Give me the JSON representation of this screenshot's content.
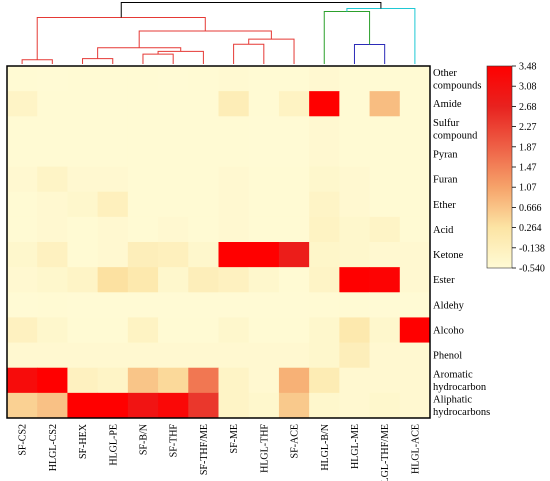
{
  "chart_data": {
    "type": "heatmap",
    "title": "",
    "xlabel": "",
    "ylabel": "",
    "columns": [
      "SF-CS2",
      "HLGL-CS2",
      "SF-HEX",
      "HLGL-PE",
      "SF-B/N",
      "SF-THF",
      "SF-THF/ME",
      "SF-ME",
      "HLGL-THF",
      "SF-ACE",
      "HLGL-B/N",
      "HLGL-ME",
      "HLGL-THF/ME",
      "HLGL-ACE"
    ],
    "rows": [
      [
        "Other",
        "compounds"
      ],
      [
        "Amide"
      ],
      [
        "Sulfur",
        "compound"
      ],
      [
        "Pyran"
      ],
      [
        "Furan"
      ],
      [
        "Ether"
      ],
      [
        "Acid"
      ],
      [
        "Ketone"
      ],
      [
        "Ester"
      ],
      [
        "Aldehy"
      ],
      [
        "Alcoho"
      ],
      [
        "Phenol"
      ],
      [
        "Aromatic",
        "hydrocarbon"
      ],
      [
        "Aliphatic",
        "hydrocarbons"
      ]
    ],
    "values": [
      [
        -0.5,
        -0.52,
        -0.5,
        -0.5,
        -0.5,
        -0.52,
        -0.5,
        -0.48,
        -0.5,
        -0.5,
        -0.45,
        -0.5,
        -0.5,
        -0.5
      ],
      [
        -0.3,
        -0.5,
        -0.5,
        -0.5,
        -0.5,
        -0.5,
        -0.5,
        -0.05,
        -0.5,
        -0.25,
        3.48,
        -0.5,
        0.75,
        -0.5
      ],
      [
        -0.5,
        -0.5,
        -0.5,
        -0.5,
        -0.5,
        -0.5,
        -0.5,
        -0.5,
        -0.52,
        -0.52,
        -0.45,
        -0.5,
        -0.5,
        -0.5
      ],
      [
        -0.5,
        -0.5,
        -0.5,
        -0.5,
        -0.5,
        -0.5,
        -0.5,
        -0.5,
        -0.52,
        -0.52,
        -0.45,
        -0.5,
        -0.5,
        -0.5
      ],
      [
        -0.45,
        -0.3,
        -0.45,
        -0.45,
        -0.5,
        -0.5,
        -0.5,
        -0.45,
        -0.5,
        -0.5,
        -0.4,
        -0.45,
        -0.5,
        -0.5
      ],
      [
        -0.5,
        -0.45,
        -0.4,
        -0.15,
        -0.5,
        -0.5,
        -0.5,
        -0.45,
        -0.5,
        -0.5,
        -0.3,
        -0.45,
        -0.5,
        -0.5
      ],
      [
        -0.5,
        -0.45,
        -0.5,
        -0.45,
        -0.5,
        -0.45,
        -0.5,
        -0.45,
        -0.5,
        -0.5,
        -0.25,
        -0.4,
        -0.3,
        -0.5
      ],
      [
        -0.4,
        -0.2,
        -0.5,
        -0.45,
        -0.1,
        -0.15,
        -0.4,
        3.48,
        3.48,
        2.8,
        -0.35,
        -0.4,
        -0.45,
        -0.45
      ],
      [
        -0.45,
        -0.4,
        -0.3,
        0.3,
        0.1,
        -0.4,
        -0.1,
        -0.2,
        -0.4,
        -0.5,
        -0.3,
        3.48,
        3.4,
        -0.45
      ],
      [
        -0.52,
        -0.5,
        -0.52,
        -0.52,
        -0.52,
        -0.52,
        -0.52,
        -0.52,
        -0.52,
        -0.52,
        -0.5,
        -0.5,
        -0.52,
        -0.52
      ],
      [
        -0.2,
        -0.4,
        -0.5,
        -0.5,
        -0.25,
        -0.5,
        -0.5,
        -0.4,
        -0.5,
        -0.5,
        -0.4,
        0.1,
        -0.4,
        3.48
      ],
      [
        -0.45,
        -0.45,
        -0.45,
        -0.45,
        -0.45,
        -0.45,
        -0.45,
        -0.45,
        -0.45,
        -0.45,
        -0.4,
        -0.1,
        -0.45,
        -0.45
      ],
      [
        3.2,
        3.48,
        -0.2,
        -0.3,
        0.65,
        0.4,
        1.6,
        -0.3,
        -0.45,
        0.9,
        0.0,
        -0.45,
        -0.45,
        -0.45
      ],
      [
        0.5,
        0.7,
        3.48,
        3.48,
        3.0,
        3.3,
        2.4,
        -0.3,
        -0.4,
        0.6,
        -0.4,
        -0.45,
        -0.4,
        -0.45
      ]
    ],
    "colorbar": {
      "ticks": [
        "3.48",
        "3.08",
        "2.68",
        "2.27",
        "1.87",
        "1.47",
        "1.07",
        "0.666",
        "0.264",
        "-0.138",
        "-0.540"
      ],
      "min": -0.54,
      "max": 3.48,
      "colors": [
        "#fffbd5",
        "#fce4a4",
        "#f6a36a",
        "#ee6046",
        "#e8221f",
        "#ff0000"
      ]
    },
    "dendrogram": {
      "cluster_colors": [
        "#e53935",
        "#2ca02c",
        "#2b2bb8",
        "#1fc8d4",
        "#000000"
      ]
    }
  }
}
